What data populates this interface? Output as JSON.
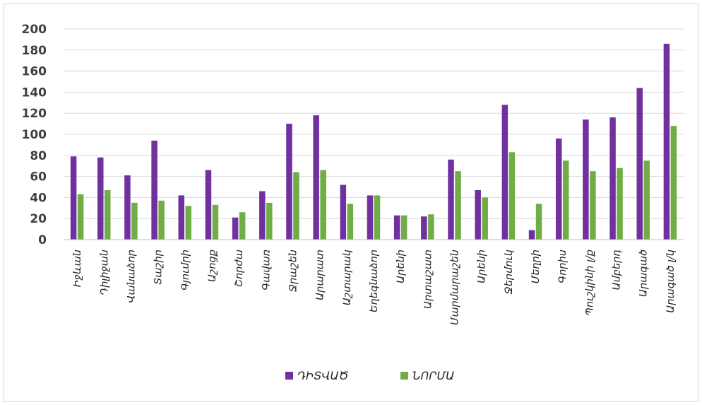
{
  "chart_data": {
    "type": "bar",
    "title": "",
    "xlabel": "",
    "ylabel": "",
    "ylim": [
      0,
      200
    ],
    "yticks": [
      0,
      20,
      40,
      60,
      80,
      100,
      120,
      140,
      160,
      180,
      200
    ],
    "grid": true,
    "legend_position": "bottom",
    "categories": [
      "Իջևան",
      "Դիլիջան",
      "Վանաձոր",
      "Տաշիր",
      "Գյումրի",
      "Աշոցք",
      "Շորժա",
      "Գավառ",
      "Ջրաշեն",
      "Արարատ",
      "Աշտարակ",
      "Եղեգնաձոր",
      "Արենի",
      "Արտաշատ",
      "Մարմարաշեն",
      "Արենի",
      "Ջերմուկ",
      "Մեղրի",
      "Գորիս",
      "Պուշկինի լ/ք",
      "Ամբերդ",
      "Արագած",
      "Արագած լ/կ"
    ],
    "series": [
      {
        "name": "ԴԻՏՎԱԾ",
        "color": "#7030a0",
        "values": [
          79,
          78,
          61,
          94,
          42,
          66,
          21,
          46,
          110,
          118,
          52,
          42,
          23,
          22,
          76,
          47,
          128,
          9,
          96,
          114,
          116,
          144,
          186
        ]
      },
      {
        "name": "ՆՈՐՄԱ",
        "color": "#70ad47",
        "values": [
          43,
          47,
          35,
          37,
          32,
          33,
          26,
          35,
          64,
          66,
          34,
          42,
          23,
          24,
          65,
          40,
          83,
          34,
          75,
          65,
          68,
          75,
          108
        ]
      }
    ]
  }
}
